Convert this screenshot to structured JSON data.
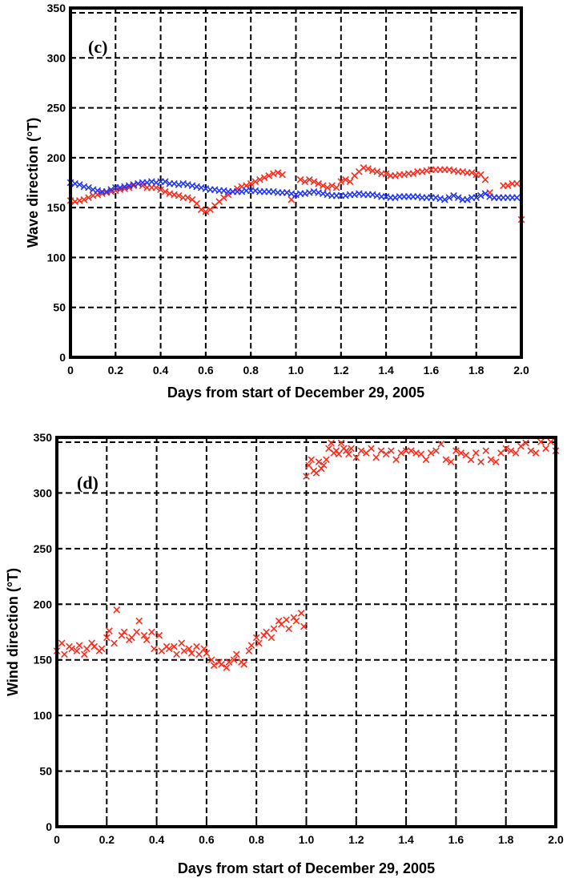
{
  "chart_data": [
    {
      "type": "scatter",
      "panel_label": "(c)",
      "xlabel": "Days from start of December 29, 2005",
      "ylabel": "Wave direction (°T)",
      "xlim": [
        0,
        2.0
      ],
      "ylim": [
        0,
        350
      ],
      "x_ticks": [
        "0",
        "0.2",
        "0.4",
        "0.6",
        "0.8",
        "1.0",
        "1.2",
        "1.4",
        "1.6",
        "1.8",
        "2.0"
      ],
      "x_tick_values": [
        0,
        0.2,
        0.4,
        0.6,
        0.8,
        1.0,
        1.2,
        1.4,
        1.6,
        1.8,
        2.0
      ],
      "y_ticks": [
        "0",
        "50",
        "100",
        "150",
        "200",
        "250",
        "300",
        "350"
      ],
      "y_tick_values": [
        0,
        50,
        100,
        150,
        200,
        250,
        300,
        350
      ],
      "grid": true,
      "marker": "x",
      "series": [
        {
          "color": "#ff2a1a",
          "x": [
            0.0,
            0.02,
            0.04,
            0.06,
            0.08,
            0.1,
            0.12,
            0.14,
            0.16,
            0.18,
            0.2,
            0.22,
            0.24,
            0.26,
            0.28,
            0.3,
            0.32,
            0.34,
            0.36,
            0.38,
            0.4,
            0.42,
            0.44,
            0.46,
            0.48,
            0.5,
            0.52,
            0.54,
            0.56,
            0.58,
            0.6,
            0.62,
            0.64,
            0.66,
            0.68,
            0.7,
            0.72,
            0.74,
            0.76,
            0.78,
            0.8,
            0.82,
            0.84,
            0.86,
            0.88,
            0.9,
            0.92,
            0.94,
            0.96,
            0.98,
            1.0,
            1.02,
            1.04,
            1.06,
            1.08,
            1.1,
            1.12,
            1.14,
            1.16,
            1.18,
            1.2,
            1.22,
            1.24,
            1.26,
            1.28,
            1.3,
            1.32,
            1.34,
            1.36,
            1.38,
            1.4,
            1.42,
            1.44,
            1.46,
            1.48,
            1.5,
            1.52,
            1.54,
            1.56,
            1.58,
            1.6,
            1.62,
            1.64,
            1.66,
            1.68,
            1.7,
            1.72,
            1.74,
            1.76,
            1.78,
            1.8,
            1.82,
            1.84,
            1.86,
            1.88,
            1.9,
            1.92,
            1.94,
            1.96,
            1.98,
            2.0
          ],
          "y": [
            157,
            156,
            157,
            158,
            160,
            162,
            163,
            164,
            165,
            166,
            167,
            168,
            169,
            170,
            172,
            174,
            172,
            170,
            170,
            170,
            168,
            166,
            164,
            163,
            162,
            160,
            160,
            158,
            154,
            148,
            146,
            148,
            152,
            156,
            160,
            163,
            166,
            169,
            171,
            172,
            174,
            176,
            178,
            180,
            182,
            184,
            185,
            183,
            165,
            158,
            163,
            178,
            176,
            178,
            176,
            174,
            172,
            170,
            172,
            170,
            176,
            178,
            176,
            182,
            186,
            190,
            189,
            187,
            186,
            184,
            184,
            182,
            182,
            183,
            183,
            184,
            184,
            186,
            186,
            187,
            188,
            188,
            188,
            188,
            188,
            187,
            186,
            186,
            185,
            185,
            183,
            183,
            178,
            165,
            160,
            160,
            172,
            172,
            174,
            174,
            138
          ]
        },
        {
          "color": "#1f35ff",
          "x": [
            0.0,
            0.02,
            0.04,
            0.06,
            0.08,
            0.1,
            0.12,
            0.14,
            0.16,
            0.18,
            0.2,
            0.22,
            0.24,
            0.26,
            0.28,
            0.3,
            0.32,
            0.34,
            0.36,
            0.38,
            0.4,
            0.42,
            0.44,
            0.46,
            0.48,
            0.5,
            0.52,
            0.54,
            0.56,
            0.58,
            0.6,
            0.62,
            0.64,
            0.66,
            0.68,
            0.7,
            0.72,
            0.74,
            0.76,
            0.78,
            0.8,
            0.82,
            0.84,
            0.86,
            0.88,
            0.9,
            0.92,
            0.94,
            0.96,
            0.98,
            1.0,
            1.02,
            1.04,
            1.06,
            1.08,
            1.1,
            1.12,
            1.14,
            1.16,
            1.18,
            1.2,
            1.22,
            1.24,
            1.26,
            1.28,
            1.3,
            1.32,
            1.34,
            1.36,
            1.38,
            1.4,
            1.42,
            1.44,
            1.46,
            1.48,
            1.5,
            1.52,
            1.54,
            1.56,
            1.58,
            1.6,
            1.62,
            1.64,
            1.66,
            1.68,
            1.7,
            1.72,
            1.74,
            1.76,
            1.78,
            1.8,
            1.82,
            1.84,
            1.86,
            1.88,
            1.9,
            1.92,
            1.94,
            1.96,
            1.98
          ],
          "y": [
            175,
            174,
            173,
            171,
            170,
            168,
            167,
            166,
            166,
            168,
            170,
            170,
            171,
            172,
            173,
            174,
            175,
            175,
            176,
            175,
            176,
            176,
            174,
            174,
            173,
            174,
            173,
            172,
            171,
            170,
            169,
            168,
            168,
            167,
            167,
            166,
            166,
            166,
            166,
            167,
            167,
            167,
            166,
            166,
            166,
            166,
            165,
            165,
            165,
            164,
            163,
            164,
            164,
            165,
            166,
            165,
            164,
            163,
            162,
            162,
            162,
            162,
            163,
            163,
            164,
            163,
            163,
            163,
            162,
            161,
            161,
            160,
            160,
            161,
            161,
            161,
            161,
            161,
            160,
            160,
            160,
            160,
            159,
            158,
            160,
            162,
            160,
            158,
            158,
            160,
            160,
            162,
            164,
            161,
            160,
            160,
            160,
            160,
            160,
            160
          ]
        }
      ]
    },
    {
      "type": "scatter",
      "panel_label": "(d)",
      "xlabel": "Days from start of December 29, 2005",
      "ylabel": "Wind direction (°T)",
      "xlim": [
        0,
        2.0
      ],
      "ylim": [
        0,
        350
      ],
      "x_ticks": [
        "0",
        "0.2",
        "0.4",
        "0.6",
        "0.8",
        "1.0",
        "1.2",
        "1.4",
        "1.6",
        "1.8",
        "2.0"
      ],
      "x_tick_values": [
        0,
        0.2,
        0.4,
        0.6,
        0.8,
        1.0,
        1.2,
        1.4,
        1.6,
        1.8,
        2.0
      ],
      "y_ticks": [
        "0",
        "50",
        "100",
        "150",
        "200",
        "250",
        "300",
        "350"
      ],
      "y_tick_values": [
        0,
        50,
        100,
        150,
        200,
        250,
        300,
        350
      ],
      "grid": true,
      "marker": "x",
      "series": [
        {
          "color": "#ff2a1a",
          "x": [
            0.0,
            0.02,
            0.03,
            0.05,
            0.06,
            0.08,
            0.09,
            0.11,
            0.12,
            0.14,
            0.15,
            0.17,
            0.18,
            0.2,
            0.21,
            0.23,
            0.24,
            0.26,
            0.27,
            0.29,
            0.3,
            0.32,
            0.33,
            0.35,
            0.36,
            0.38,
            0.39,
            0.41,
            0.42,
            0.44,
            0.45,
            0.47,
            0.48,
            0.5,
            0.51,
            0.53,
            0.54,
            0.56,
            0.57,
            0.59,
            0.6,
            0.62,
            0.63,
            0.65,
            0.66,
            0.68,
            0.69,
            0.71,
            0.72,
            0.74,
            0.75,
            0.77,
            0.78,
            0.8,
            0.81,
            0.83,
            0.84,
            0.86,
            0.87,
            0.89,
            0.9,
            0.92,
            0.93,
            0.95,
            0.96,
            0.98,
            0.99,
            1.0,
            1.01,
            1.02,
            1.03,
            1.04,
            1.05,
            1.06,
            1.07,
            1.08,
            1.09,
            1.1,
            1.11,
            1.12,
            1.13,
            1.14,
            1.15,
            1.16,
            1.17,
            1.18,
            1.2,
            1.22,
            1.24,
            1.26,
            1.28,
            1.3,
            1.32,
            1.34,
            1.36,
            1.38,
            1.4,
            1.42,
            1.44,
            1.46,
            1.48,
            1.5,
            1.52,
            1.54,
            1.56,
            1.58,
            1.6,
            1.62,
            1.64,
            1.66,
            1.68,
            1.7,
            1.72,
            1.74,
            1.76,
            1.78,
            1.8,
            1.82,
            1.84,
            1.86,
            1.88,
            1.9,
            1.92,
            1.94,
            1.96,
            1.98,
            2.0
          ],
          "y": [
            158,
            165,
            155,
            162,
            160,
            158,
            163,
            155,
            160,
            165,
            162,
            158,
            160,
            170,
            176,
            165,
            195,
            172,
            175,
            168,
            170,
            175,
            185,
            172,
            168,
            175,
            160,
            172,
            158,
            162,
            160,
            162,
            155,
            165,
            158,
            160,
            156,
            162,
            155,
            160,
            156,
            150,
            145,
            148,
            146,
            143,
            148,
            150,
            155,
            148,
            146,
            158,
            163,
            170,
            165,
            172,
            175,
            170,
            178,
            185,
            182,
            186,
            178,
            188,
            185,
            192,
            180,
            315,
            325,
            330,
            320,
            318,
            328,
            322,
            325,
            330,
            340,
            345,
            336,
            338,
            335,
            345,
            340,
            338,
            335,
            340,
            332,
            338,
            336,
            340,
            332,
            338,
            335,
            338,
            330,
            336,
            338,
            338,
            336,
            335,
            330,
            336,
            338,
            344,
            330,
            328,
            338,
            336,
            334,
            330,
            336,
            328,
            338,
            330,
            328,
            336,
            340,
            338,
            336,
            342,
            345,
            338,
            336,
            346,
            340,
            346,
            338
          ]
        }
      ]
    }
  ]
}
